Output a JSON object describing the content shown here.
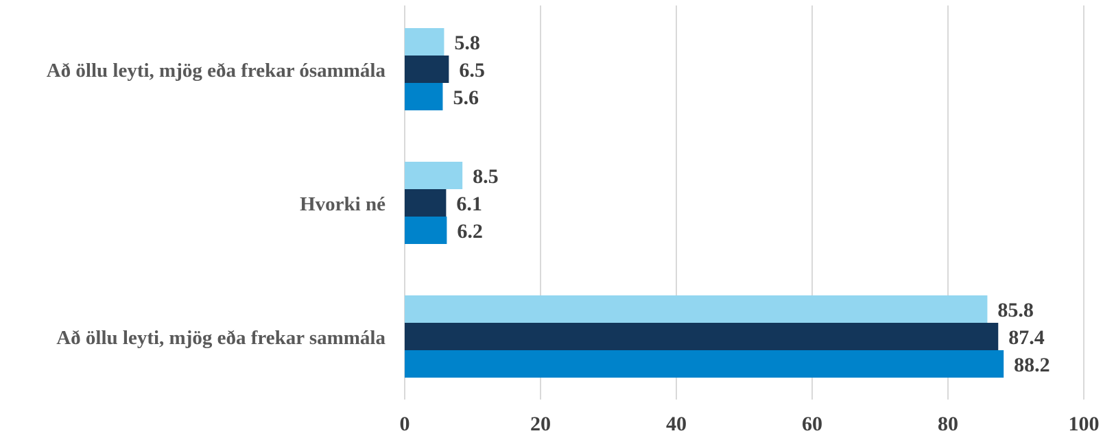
{
  "chart_data": {
    "type": "bar",
    "orientation": "horizontal",
    "title": "",
    "xlabel": "",
    "ylabel": "",
    "xlim": [
      0,
      100
    ],
    "grid": true,
    "legend": "none",
    "x_ticks": [
      "0",
      "20",
      "40",
      "60",
      "80",
      "100"
    ],
    "categories": [
      "Að öllu leyti, mjög eða frekar ósammála",
      "Hvorki né",
      "Að öllu leyti, mjög eða frekar sammála"
    ],
    "series": [
      {
        "color": "#92D6F0",
        "values": [
          5.8,
          8.5,
          85.8
        ],
        "labels": [
          "5.8",
          "8.5",
          "85.8"
        ]
      },
      {
        "color": "#13365A",
        "values": [
          6.5,
          6.1,
          87.4
        ],
        "labels": [
          "6.5",
          "6.1",
          "87.4"
        ]
      },
      {
        "color": "#0083CB",
        "values": [
          5.6,
          6.2,
          88.2
        ],
        "labels": [
          "5.6",
          "6.2",
          "88.2"
        ]
      }
    ]
  }
}
